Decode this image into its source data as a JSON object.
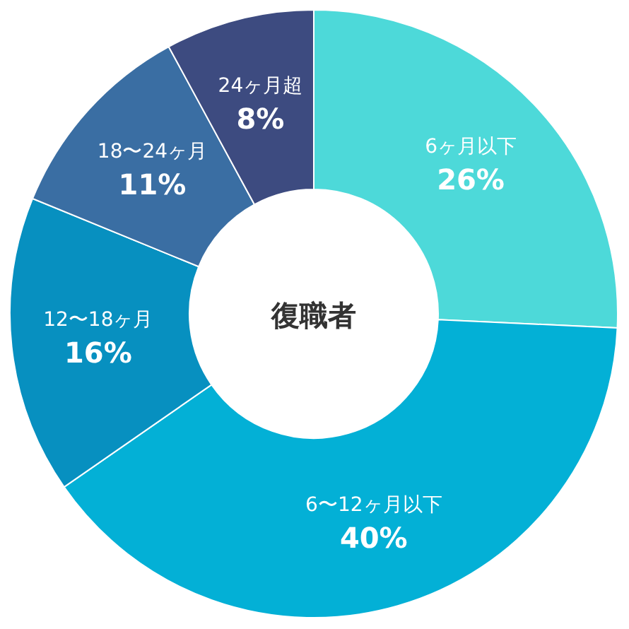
{
  "chart_data": {
    "type": "donut",
    "title": "復職者",
    "categories": [
      "6ヶ月以下",
      "6〜12ヶ月以下",
      "12〜18ヶ月",
      "18〜24ヶ月",
      "24ヶ月超"
    ],
    "values": [
      26,
      40,
      16,
      11,
      8
    ],
    "value_labels": [
      "26%",
      "40%",
      "16%",
      "11%",
      "8%"
    ],
    "colors": [
      "#4dd9d9",
      "#03b0d6",
      "#0790c0",
      "#3a6ea3",
      "#3d4b80"
    ],
    "legend": false
  }
}
